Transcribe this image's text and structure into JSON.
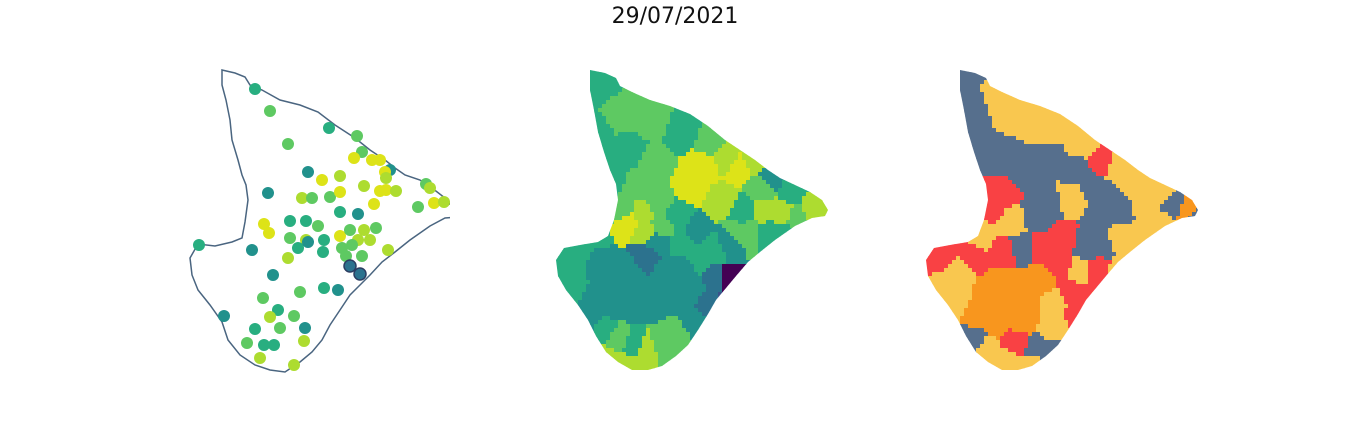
{
  "title": "29/07/2021",
  "colors": {
    "outline": "#4a6580",
    "viridis": [
      "#440154",
      "#3b528b",
      "#2c728e",
      "#21918c",
      "#28ae80",
      "#5ec962",
      "#addc30",
      "#dde318"
    ],
    "categories": [
      "#566f8d",
      "#f9c74f",
      "#f94144",
      "#f8961e"
    ]
  },
  "panels": [
    {
      "name": "station-points-map",
      "style": "points"
    },
    {
      "name": "municipality-choropleth-map",
      "style": "viridis"
    },
    {
      "name": "municipality-category-map",
      "style": "category"
    }
  ]
}
